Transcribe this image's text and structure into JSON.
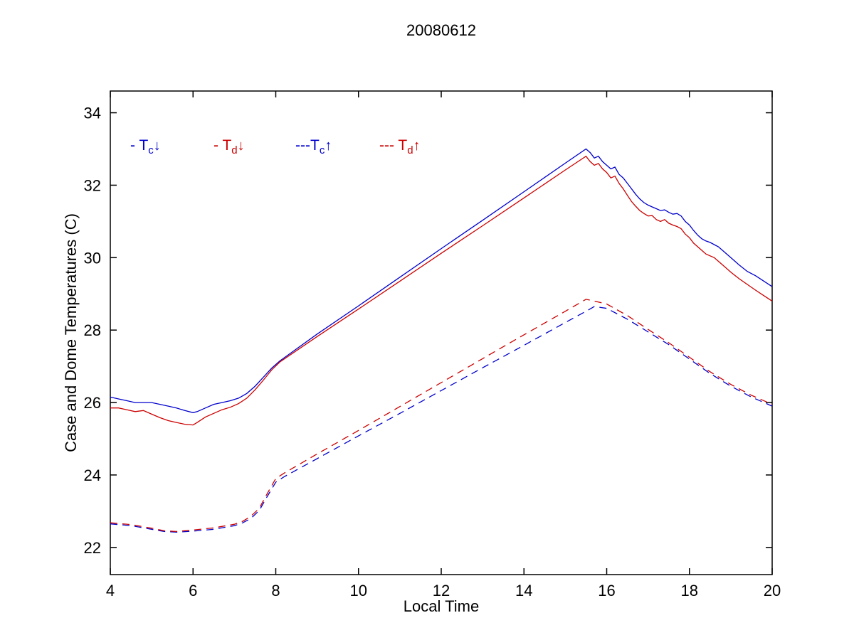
{
  "chart_data": {
    "type": "line",
    "title": "20080612",
    "xlabel": "Local Time",
    "ylabel": "Case and Dome Temperatures (C)",
    "xlim": [
      4,
      20
    ],
    "ylim": [
      21.25,
      34.6
    ],
    "xticks": [
      "4",
      "6",
      "8",
      "10",
      "12",
      "14",
      "16",
      "18",
      "20"
    ],
    "yticks": [
      "22",
      "24",
      "26",
      "28",
      "30",
      "32",
      "34"
    ],
    "grid": false,
    "legend_position": "inside-top-left",
    "colors": {
      "blue": "#0000CC",
      "red": "#CC0000",
      "axis": "#000000"
    },
    "legend": [
      {
        "prefix": "- ",
        "symbol": "T",
        "sub": "c",
        "arrow": "↓",
        "color": "#0000CC",
        "style": "solid"
      },
      {
        "prefix": "- ",
        "symbol": "T",
        "sub": "d",
        "arrow": "↓",
        "color": "#CC0000",
        "style": "solid"
      },
      {
        "prefix": "---",
        "symbol": "T",
        "sub": "c",
        "arrow": "↑",
        "color": "#0000CC",
        "style": "dashed"
      },
      {
        "prefix": "--- ",
        "symbol": "T",
        "sub": "d",
        "arrow": "↑",
        "color": "#CC0000",
        "style": "dashed"
      }
    ],
    "series": [
      {
        "name": "Tc-down",
        "label": "Tc (case, down)",
        "color": "#0000CC",
        "dash": "solid",
        "points": [
          [
            4,
            26.15
          ],
          [
            4.2,
            26.1
          ],
          [
            4.4,
            26.05
          ],
          [
            4.6,
            26.0
          ],
          [
            4.8,
            26.0
          ],
          [
            5,
            26.0
          ],
          [
            5.2,
            25.95
          ],
          [
            5.4,
            25.9
          ],
          [
            5.6,
            25.85
          ],
          [
            5.8,
            25.78
          ],
          [
            6,
            25.72
          ],
          [
            6.1,
            25.75
          ],
          [
            6.3,
            25.85
          ],
          [
            6.5,
            25.95
          ],
          [
            6.7,
            26.0
          ],
          [
            6.9,
            26.05
          ],
          [
            7.1,
            26.12
          ],
          [
            7.3,
            26.25
          ],
          [
            7.5,
            26.45
          ],
          [
            7.7,
            26.7
          ],
          [
            7.9,
            26.95
          ],
          [
            8.1,
            27.15
          ],
          [
            9,
            27.89
          ],
          [
            10,
            28.67
          ],
          [
            11,
            29.46
          ],
          [
            12,
            30.25
          ],
          [
            13,
            31.03
          ],
          [
            14,
            31.82
          ],
          [
            15,
            32.61
          ],
          [
            15.5,
            33.0
          ],
          [
            15.6,
            32.9
          ],
          [
            15.7,
            32.75
          ],
          [
            15.8,
            32.8
          ],
          [
            15.9,
            32.65
          ],
          [
            16,
            32.55
          ],
          [
            16.1,
            32.45
          ],
          [
            16.2,
            32.5
          ],
          [
            16.3,
            32.3
          ],
          [
            16.4,
            32.2
          ],
          [
            16.5,
            32.05
          ],
          [
            16.6,
            31.9
          ],
          [
            16.7,
            31.75
          ],
          [
            16.8,
            31.62
          ],
          [
            16.9,
            31.52
          ],
          [
            17,
            31.45
          ],
          [
            17.1,
            31.4
          ],
          [
            17.2,
            31.35
          ],
          [
            17.3,
            31.3
          ],
          [
            17.4,
            31.32
          ],
          [
            17.5,
            31.25
          ],
          [
            17.6,
            31.2
          ],
          [
            17.7,
            31.22
          ],
          [
            17.8,
            31.15
          ],
          [
            17.9,
            31.0
          ],
          [
            18,
            30.9
          ],
          [
            18.1,
            30.75
          ],
          [
            18.2,
            30.62
          ],
          [
            18.3,
            30.52
          ],
          [
            18.4,
            30.46
          ],
          [
            18.5,
            30.42
          ],
          [
            18.6,
            30.36
          ],
          [
            18.7,
            30.3
          ],
          [
            18.8,
            30.2
          ],
          [
            19,
            30.0
          ],
          [
            19.2,
            29.8
          ],
          [
            19.4,
            29.62
          ],
          [
            19.6,
            29.5
          ],
          [
            19.8,
            29.35
          ],
          [
            20,
            29.2
          ]
        ]
      },
      {
        "name": "Td-down",
        "label": "Td (dome, down)",
        "color": "#CC0000",
        "dash": "solid",
        "points": [
          [
            4,
            25.85
          ],
          [
            4.2,
            25.85
          ],
          [
            4.4,
            25.8
          ],
          [
            4.6,
            25.75
          ],
          [
            4.8,
            25.78
          ],
          [
            5,
            25.68
          ],
          [
            5.2,
            25.58
          ],
          [
            5.4,
            25.5
          ],
          [
            5.6,
            25.45
          ],
          [
            5.8,
            25.4
          ],
          [
            6,
            25.38
          ],
          [
            6.1,
            25.45
          ],
          [
            6.3,
            25.6
          ],
          [
            6.5,
            25.7
          ],
          [
            6.7,
            25.8
          ],
          [
            6.9,
            25.87
          ],
          [
            7.1,
            25.97
          ],
          [
            7.3,
            26.12
          ],
          [
            7.5,
            26.35
          ],
          [
            7.7,
            26.62
          ],
          [
            7.9,
            26.9
          ],
          [
            8.1,
            27.12
          ],
          [
            9,
            27.82
          ],
          [
            10,
            28.58
          ],
          [
            11,
            29.35
          ],
          [
            12,
            30.12
          ],
          [
            13,
            30.88
          ],
          [
            14,
            31.65
          ],
          [
            15,
            32.42
          ],
          [
            15.5,
            32.8
          ],
          [
            15.6,
            32.65
          ],
          [
            15.7,
            32.55
          ],
          [
            15.8,
            32.6
          ],
          [
            15.9,
            32.45
          ],
          [
            16,
            32.35
          ],
          [
            16.1,
            32.2
          ],
          [
            16.2,
            32.25
          ],
          [
            16.3,
            32.05
          ],
          [
            16.4,
            31.9
          ],
          [
            16.5,
            31.72
          ],
          [
            16.6,
            31.55
          ],
          [
            16.7,
            31.42
          ],
          [
            16.8,
            31.3
          ],
          [
            16.9,
            31.22
          ],
          [
            17,
            31.15
          ],
          [
            17.1,
            31.16
          ],
          [
            17.2,
            31.05
          ],
          [
            17.3,
            31.0
          ],
          [
            17.4,
            31.05
          ],
          [
            17.5,
            30.95
          ],
          [
            17.6,
            30.9
          ],
          [
            17.7,
            30.86
          ],
          [
            17.8,
            30.8
          ],
          [
            17.9,
            30.65
          ],
          [
            18,
            30.55
          ],
          [
            18.1,
            30.4
          ],
          [
            18.2,
            30.3
          ],
          [
            18.3,
            30.2
          ],
          [
            18.4,
            30.1
          ],
          [
            18.5,
            30.05
          ],
          [
            18.6,
            30.0
          ],
          [
            18.7,
            29.9
          ],
          [
            18.8,
            29.8
          ],
          [
            19,
            29.6
          ],
          [
            19.2,
            29.42
          ],
          [
            19.4,
            29.26
          ],
          [
            19.6,
            29.1
          ],
          [
            19.8,
            28.95
          ],
          [
            20,
            28.8
          ]
        ]
      },
      {
        "name": "Tc-up",
        "label": "Tc (case, up)",
        "color": "#0000CC",
        "dash": "dashed",
        "points": [
          [
            4,
            22.65
          ],
          [
            4.5,
            22.6
          ],
          [
            5,
            22.5
          ],
          [
            5.3,
            22.44
          ],
          [
            5.6,
            22.42
          ],
          [
            6,
            22.45
          ],
          [
            6.5,
            22.5
          ],
          [
            7,
            22.6
          ],
          [
            7.2,
            22.68
          ],
          [
            7.4,
            22.8
          ],
          [
            7.6,
            23.02
          ],
          [
            7.8,
            23.42
          ],
          [
            8,
            23.8
          ],
          [
            8.2,
            23.95
          ],
          [
            9,
            24.45
          ],
          [
            10,
            25.08
          ],
          [
            11,
            25.7
          ],
          [
            12,
            26.33
          ],
          [
            13,
            26.96
          ],
          [
            14,
            27.58
          ],
          [
            15,
            28.21
          ],
          [
            15.5,
            28.52
          ],
          [
            15.7,
            28.65
          ],
          [
            16,
            28.6
          ],
          [
            16.5,
            28.3
          ],
          [
            17,
            27.95
          ],
          [
            17.5,
            27.6
          ],
          [
            18,
            27.2
          ],
          [
            18.5,
            26.8
          ],
          [
            19,
            26.45
          ],
          [
            19.5,
            26.15
          ],
          [
            20,
            25.9
          ]
        ]
      },
      {
        "name": "Td-up",
        "label": "Td (dome, up)",
        "color": "#CC0000",
        "dash": "dashed",
        "points": [
          [
            4,
            22.68
          ],
          [
            4.5,
            22.63
          ],
          [
            5,
            22.53
          ],
          [
            5.3,
            22.46
          ],
          [
            5.6,
            22.44
          ],
          [
            6,
            22.48
          ],
          [
            6.5,
            22.54
          ],
          [
            7,
            22.64
          ],
          [
            7.2,
            22.72
          ],
          [
            7.4,
            22.86
          ],
          [
            7.6,
            23.08
          ],
          [
            7.8,
            23.5
          ],
          [
            8,
            23.9
          ],
          [
            8.2,
            24.05
          ],
          [
            9,
            24.58
          ],
          [
            10,
            25.23
          ],
          [
            11,
            25.89
          ],
          [
            12,
            26.55
          ],
          [
            13,
            27.21
          ],
          [
            14,
            27.87
          ],
          [
            15,
            28.52
          ],
          [
            15.5,
            28.85
          ],
          [
            15.7,
            28.8
          ],
          [
            16,
            28.72
          ],
          [
            16.5,
            28.4
          ],
          [
            17,
            28.02
          ],
          [
            17.5,
            27.65
          ],
          [
            18,
            27.25
          ],
          [
            18.5,
            26.85
          ],
          [
            19,
            26.5
          ],
          [
            19.5,
            26.2
          ],
          [
            20,
            25.95
          ]
        ]
      }
    ]
  }
}
